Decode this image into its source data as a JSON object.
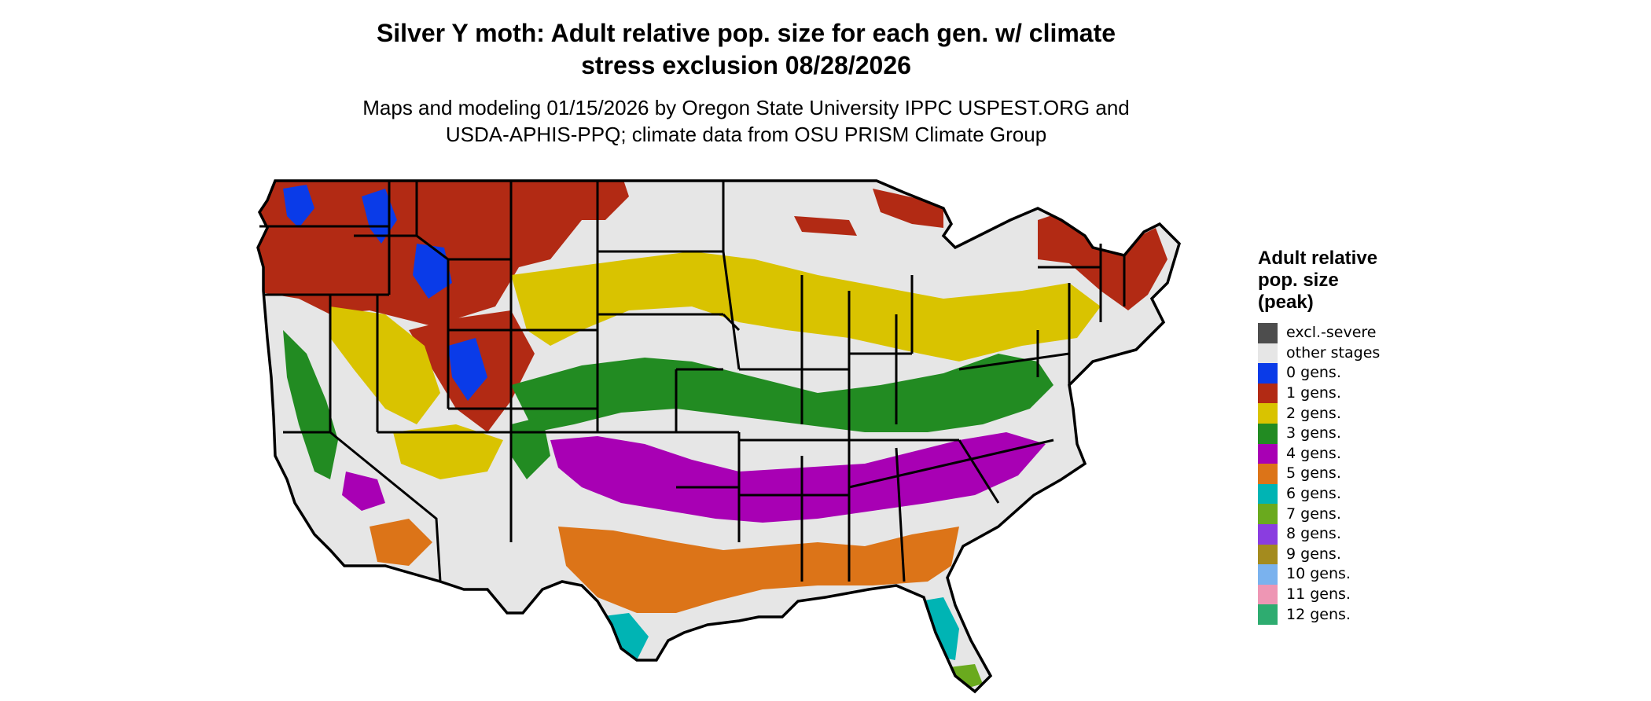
{
  "title": {
    "line1": "Silver Y moth: Adult relative pop. size for each gen. w/ climate",
    "line2": "stress exclusion 08/28/2026"
  },
  "subtitle": {
    "line1": "Maps and modeling 01/15/2026 by Oregon State University IPPC USPEST.ORG and",
    "line2": "USDA-APHIS-PPQ; climate data from OSU PRISM Climate Group"
  },
  "map": {
    "region": "contiguous United States",
    "boundaries": "state outlines",
    "regions": [
      {
        "class": "1 gens.",
        "area": "Pacific Northwest, northern Rockies, Maine, upper Michigan"
      },
      {
        "class": "0 gens.",
        "area": "high mountains of Idaho, Wyoming, Colorado"
      },
      {
        "class": "2 gens.",
        "area": "central plains, Midwest corn belt, Pennsylvania"
      },
      {
        "class": "3 gens.",
        "area": "Kansas/Missouri band, Tennessee, Virginia, California valley"
      },
      {
        "class": "4 gens.",
        "area": "Oklahoma/Texas border to South Carolina"
      },
      {
        "class": "5 gens.",
        "area": "Gulf coast, north Florida, southern Arizona"
      },
      {
        "class": "6 gens.",
        "area": "south Texas, central Florida"
      },
      {
        "class": "7 gens.",
        "area": "Florida Keys"
      }
    ]
  },
  "legend": {
    "title_line1": "Adult relative",
    "title_line2": "pop. size",
    "title_line3": "(peak)",
    "items": [
      {
        "label": "excl.-severe",
        "color": "#4d4d4d"
      },
      {
        "label": "other stages",
        "color": "#e6e6e6"
      },
      {
        "label": "0 gens.",
        "color": "#0a3be8"
      },
      {
        "label": "1 gens.",
        "color": "#b22a14"
      },
      {
        "label": "2 gens.",
        "color": "#d9c300"
      },
      {
        "label": "3 gens.",
        "color": "#228b22"
      },
      {
        "label": "4 gens.",
        "color": "#a800b4"
      },
      {
        "label": "5 gens.",
        "color": "#dc7418"
      },
      {
        "label": "6 gens.",
        "color": "#00b4b4"
      },
      {
        "label": "7 gens.",
        "color": "#6aaa1e"
      },
      {
        "label": "8 gens.",
        "color": "#8a3de0"
      },
      {
        "label": "9 gens.",
        "color": "#a48b1e"
      },
      {
        "label": "10 gens.",
        "color": "#7ab2ee"
      },
      {
        "label": "11 gens.",
        "color": "#ee96b4"
      },
      {
        "label": "12 gens.",
        "color": "#2eac70"
      }
    ]
  }
}
